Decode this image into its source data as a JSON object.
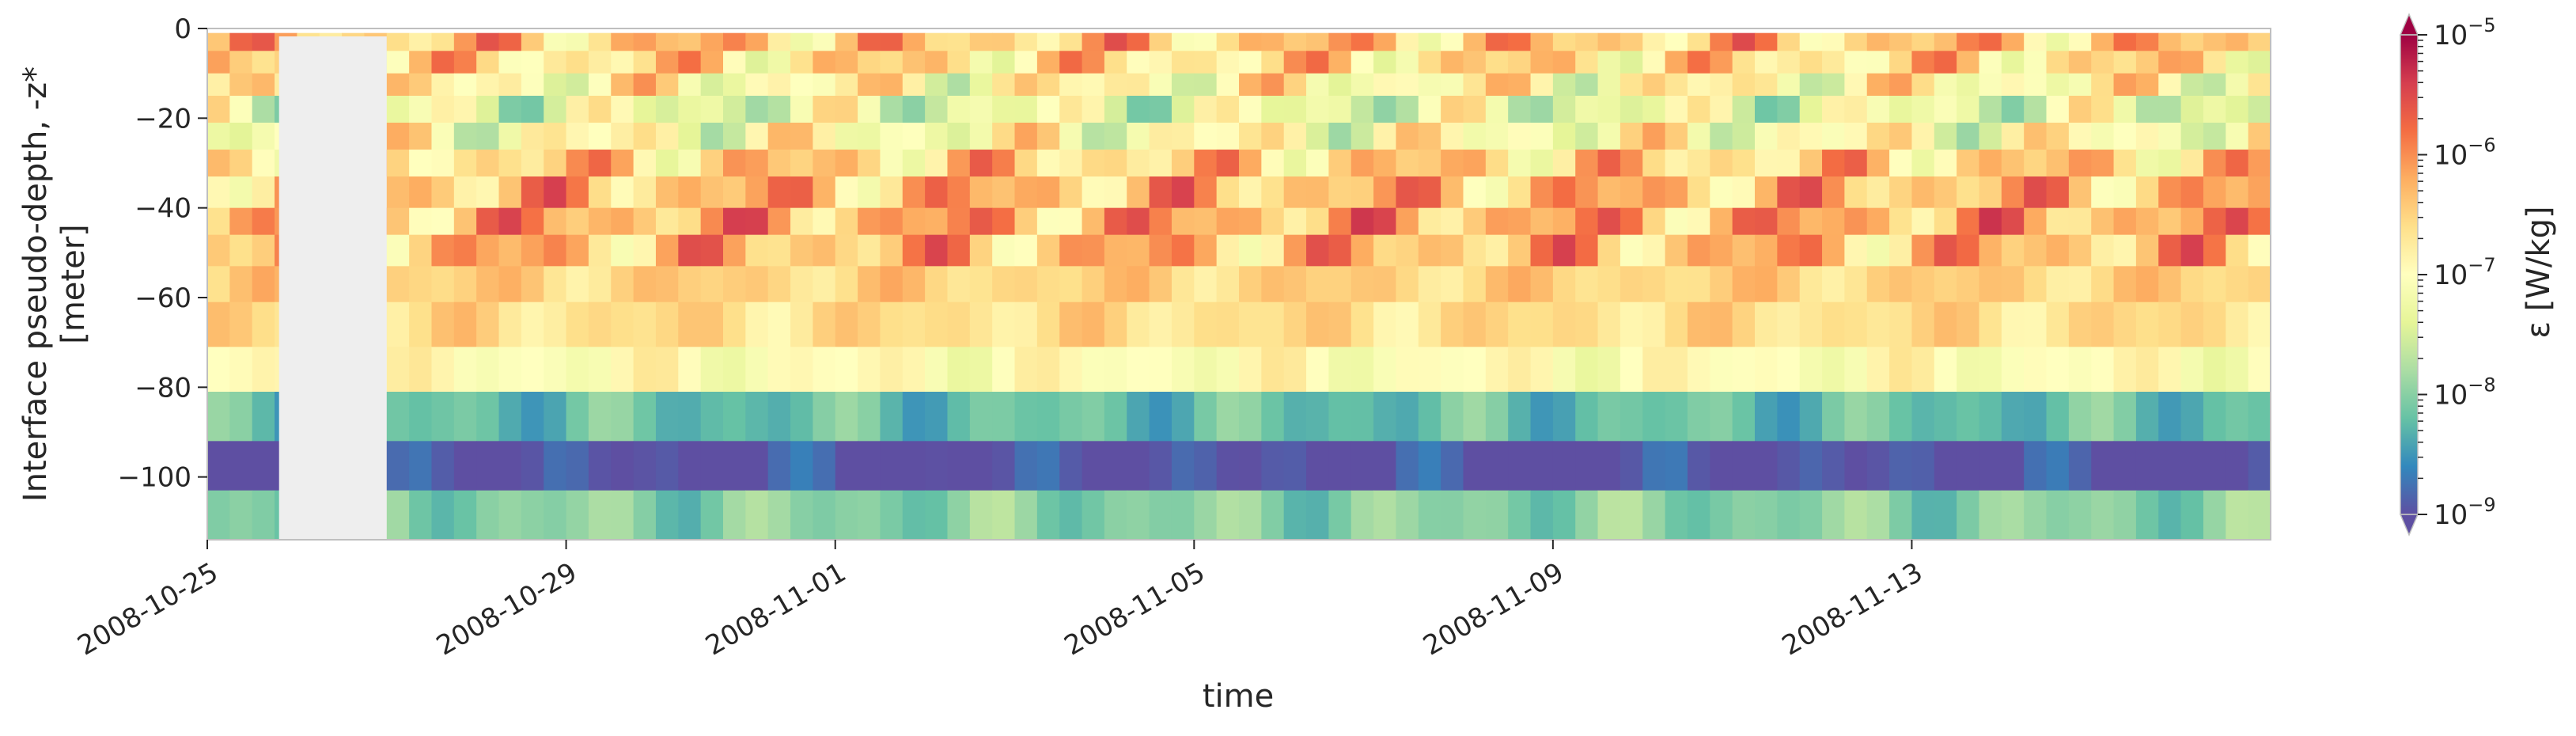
{
  "chart_data": {
    "type": "heatmap",
    "title": "",
    "xlabel": "time",
    "ylabel_lines": [
      "Interface pseudo-depth, -z*",
      "[meter]"
    ],
    "x_range": [
      "2008-10-25",
      "2008-11-17"
    ],
    "y_range": [
      -114,
      0
    ],
    "x_ticks": [
      "2008-10-25",
      "2008-10-29",
      "2008-11-01",
      "2008-11-05",
      "2008-11-09",
      "2008-11-13"
    ],
    "y_ticks": [
      0,
      -20,
      -40,
      -60,
      -80,
      -100
    ],
    "gap": {
      "start": "2008-10-25T19:12",
      "end": "2008-10-27T00:00",
      "color": "#eeeeee"
    },
    "depth_bands": [
      {
        "top": -1,
        "bottom": -5,
        "log10_value": -6.4
      },
      {
        "top": -5,
        "bottom": -10,
        "log10_value": -6.6
      },
      {
        "top": -10,
        "bottom": -15,
        "log10_value": -6.9
      },
      {
        "top": -15,
        "bottom": -21,
        "log10_value": -7.3
      },
      {
        "top": -21,
        "bottom": -27,
        "log10_value": -7.0
      },
      {
        "top": -27,
        "bottom": -33,
        "log10_value": -6.5
      },
      {
        "top": -33,
        "bottom": -40,
        "log10_value": -6.3
      },
      {
        "top": -40,
        "bottom": -46,
        "log10_value": -6.2
      },
      {
        "top": -46,
        "bottom": -53,
        "log10_value": -6.3
      },
      {
        "top": -53,
        "bottom": -61,
        "log10_value": -6.5
      },
      {
        "top": -61,
        "bottom": -71,
        "log10_value": -6.6
      },
      {
        "top": -71,
        "bottom": -81,
        "log10_value": -7.0
      },
      {
        "top": -81,
        "bottom": -92,
        "log10_value": -8.2
      },
      {
        "top": -92,
        "bottom": -103,
        "log10_value": -9.0
      },
      {
        "top": -103,
        "bottom": -114,
        "log10_value": -8.0
      }
    ],
    "colorbar": {
      "label": "ε [W/kg]",
      "scale": "log",
      "range": [
        1e-09,
        1e-05
      ],
      "ticks": [
        {
          "base": "10",
          "exp": "−5",
          "value": 1e-05
        },
        {
          "base": "10",
          "exp": "−6",
          "value": 1e-06
        },
        {
          "base": "10",
          "exp": "−7",
          "value": 1e-07
        },
        {
          "base": "10",
          "exp": "−8",
          "value": 1e-08
        },
        {
          "base": "10",
          "exp": "−9",
          "value": 1e-09
        }
      ],
      "extend": "both",
      "colormap": "Spectral_r",
      "colors": [
        "#5e4fa2",
        "#3288bd",
        "#66c2a5",
        "#abdda4",
        "#e6f598",
        "#ffffbf",
        "#fee08b",
        "#fdae61",
        "#f46d43",
        "#d53e4f",
        "#9e0142"
      ]
    }
  }
}
